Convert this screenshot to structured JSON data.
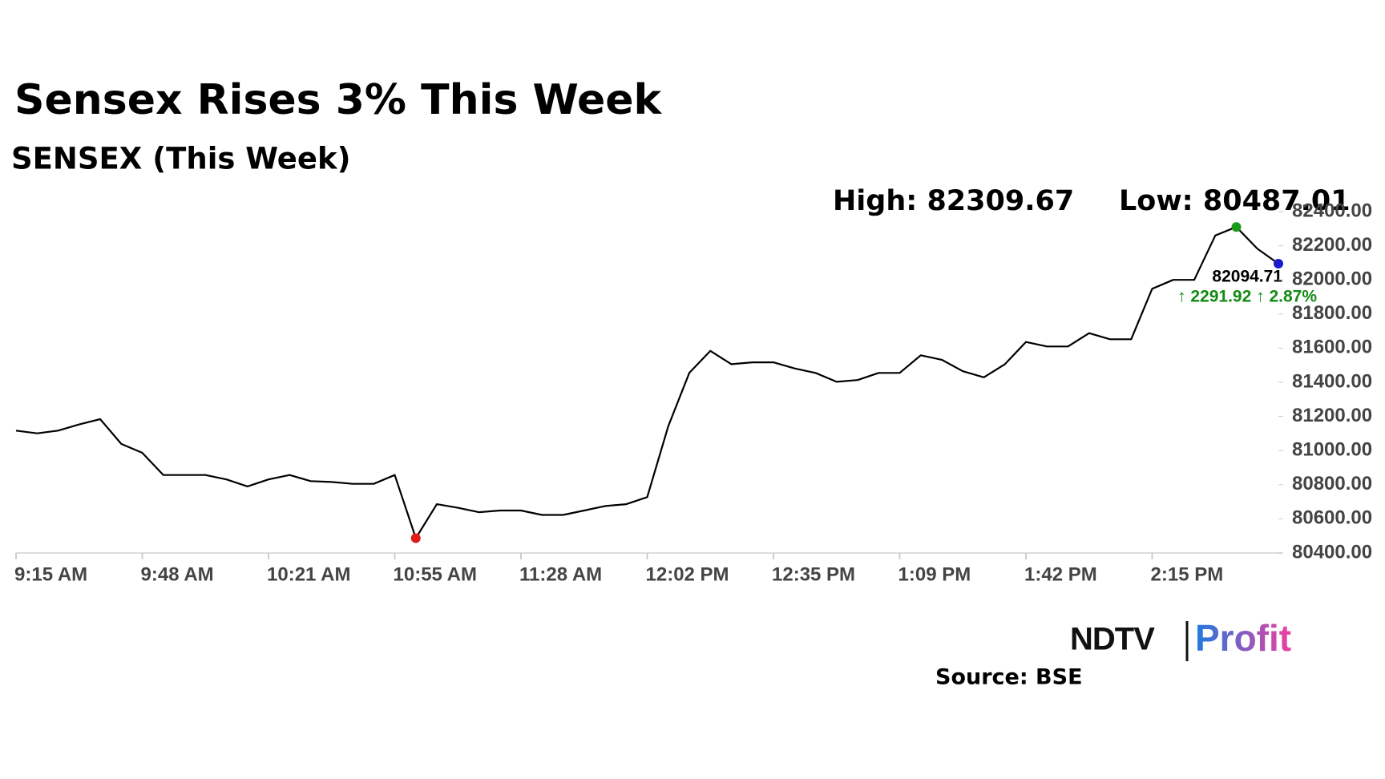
{
  "chart_data": {
    "type": "line",
    "title": "Sensex Rises 3% This Week",
    "subtitle": "SENSEX (This Week)",
    "annotations": {
      "high": "High: 82309.67",
      "low": "Low: 80487.01",
      "last": "82094.71",
      "change": "↑ 2291.92 ↑ 2.87%"
    },
    "source": "Source: BSE",
    "logo": {
      "left": "NDTV",
      "right": "Profit"
    },
    "categories": [
      "9:15 AM",
      null,
      null,
      null,
      null,
      null,
      "9:48 AM",
      null,
      null,
      null,
      null,
      null,
      "10:21 AM",
      null,
      null,
      null,
      null,
      null,
      "10:55 AM",
      null,
      null,
      null,
      null,
      null,
      "11:28 AM",
      null,
      null,
      null,
      null,
      null,
      "12:02 PM",
      null,
      null,
      null,
      null,
      null,
      "12:35 PM",
      null,
      null,
      null,
      null,
      null,
      "1:09 PM",
      null,
      null,
      null,
      null,
      null,
      "1:42 PM",
      null,
      null,
      null,
      null,
      null,
      "2:15 PM",
      null,
      null,
      null,
      null,
      null,
      null
    ],
    "series": [
      {
        "name": "SENSEX",
        "color": "#000000",
        "values": [
          81117,
          81101,
          81117,
          81153,
          81184,
          81039,
          80987,
          80857,
          80857,
          80857,
          80831,
          80790,
          80831,
          80857,
          80821,
          80816,
          80805,
          80805,
          80857,
          80487.01,
          80686,
          80665,
          80639,
          80649,
          80649,
          80623,
          80623,
          80649,
          80675,
          80686,
          80727,
          81143,
          81455,
          81584,
          81506,
          81517,
          81517,
          81481,
          81455,
          81403,
          81413,
          81455,
          81455,
          81558,
          81532,
          81465,
          81429,
          81506,
          81636,
          81610,
          81610,
          81688,
          81652,
          81652,
          81948,
          82000,
          82000,
          82260,
          82309.67,
          82182,
          82094.71
        ]
      }
    ],
    "marker_colors": {
      "high": "#1a9a1a",
      "low": "#e01b1b",
      "last": "#1a1acc"
    },
    "change_color": "#138a13",
    "ylim": [
      80400,
      82400
    ],
    "yticks": [
      {
        "value": 80400,
        "label": "80400.00"
      },
      {
        "value": 80600,
        "label": "80600.00"
      },
      {
        "value": 80800,
        "label": "80800.00"
      },
      {
        "value": 81000,
        "label": "81000.00"
      },
      {
        "value": 81200,
        "label": "81200.00"
      },
      {
        "value": 81400,
        "label": "81400.00"
      },
      {
        "value": 81600,
        "label": "81600.00"
      },
      {
        "value": 81800,
        "label": "81800.00"
      },
      {
        "value": 82000,
        "label": "82000.00"
      },
      {
        "value": 82200,
        "label": "82200.00"
      },
      {
        "value": 82400,
        "label": "82400.00"
      }
    ],
    "y_axis_side": "right",
    "grid": false
  }
}
